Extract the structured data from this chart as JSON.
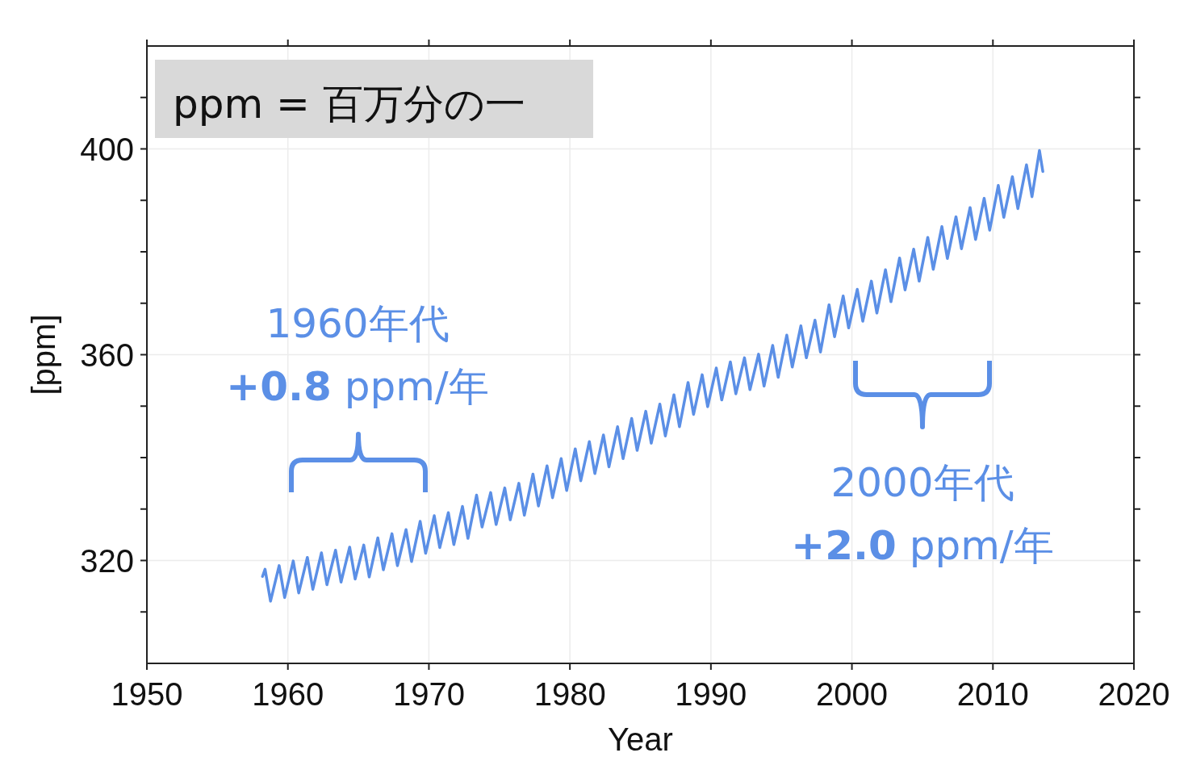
{
  "chart_data": {
    "type": "line",
    "xlabel": "Year",
    "ylabel": "[ppm]",
    "annotations": [
      "ppm = 百万分の一",
      "1960年代",
      "**+0.8** ppm/年",
      "2000年代",
      "**+2.0** ppm/年"
    ],
    "xlim": [
      1950,
      2020
    ],
    "xticks": [
      1950,
      1960,
      1970,
      1980,
      1990,
      2000,
      2010,
      2020
    ],
    "ylim": [
      300,
      420
    ],
    "yticks": [
      {
        "value": 310,
        "label": null
      },
      320,
      {
        "value": 330,
        "label": null
      },
      {
        "value": 340,
        "label": null
      },
      {
        "value": 350,
        "label": null
      },
      360,
      {
        "value": 370,
        "label": null
      },
      {
        "value": 380,
        "label": null
      },
      {
        "value": 390,
        "label": null
      },
      400,
      {
        "value": 410,
        "label": null
      }
    ],
    "grid": true,
    "marker": "none",
    "line_style": "solid",
    "series": [
      {
        "color": "#5b8fe6",
        "x": [
          1958.2,
          1958.38,
          1958.77,
          1959.38,
          1959.77,
          1960.38,
          1960.77,
          1961.38,
          1961.77,
          1962.38,
          1962.77,
          1963.38,
          1963.77,
          1964.38,
          1964.77,
          1965.38,
          1965.77,
          1966.38,
          1966.77,
          1967.38,
          1967.77,
          1968.38,
          1968.77,
          1969.38,
          1969.77,
          1970.38,
          1970.77,
          1971.38,
          1971.77,
          1972.38,
          1972.77,
          1973.38,
          1973.77,
          1974.38,
          1974.77,
          1975.38,
          1975.77,
          1976.38,
          1976.77,
          1977.38,
          1977.77,
          1978.38,
          1978.77,
          1979.38,
          1979.77,
          1980.38,
          1980.77,
          1981.38,
          1981.77,
          1982.38,
          1982.77,
          1983.38,
          1983.77,
          1984.38,
          1984.77,
          1985.38,
          1985.77,
          1986.38,
          1986.77,
          1987.38,
          1987.77,
          1988.38,
          1988.77,
          1989.38,
          1989.77,
          1990.38,
          1990.77,
          1991.38,
          1991.77,
          1992.38,
          1992.77,
          1993.38,
          1993.77,
          1994.38,
          1994.77,
          1995.38,
          1995.77,
          1996.38,
          1996.77,
          1997.38,
          1997.77,
          1998.38,
          1998.77,
          1999.38,
          1999.77,
          2000.38,
          2000.77,
          2001.38,
          2001.77,
          2002.38,
          2002.77,
          2003.38,
          2003.77,
          2004.38,
          2004.77,
          2005.38,
          2005.77,
          2006.38,
          2006.77,
          2007.38,
          2007.77,
          2008.38,
          2008.77,
          2009.38,
          2009.77,
          2010.38,
          2010.77,
          2011.38,
          2011.77,
          2012.38,
          2012.77,
          2013.3,
          2013.54
        ],
        "values": [
          316.9,
          318.3,
          312.1,
          319.0,
          312.8,
          319.9,
          313.7,
          320.6,
          314.4,
          321.5,
          315.3,
          322.0,
          315.8,
          322.6,
          316.4,
          323.0,
          316.8,
          324.4,
          318.2,
          325.2,
          319.0,
          326.0,
          319.8,
          327.6,
          321.4,
          328.7,
          322.5,
          329.3,
          323.1,
          330.5,
          324.3,
          332.7,
          326.5,
          333.2,
          327.0,
          334.1,
          327.9,
          335.0,
          328.8,
          336.8,
          330.6,
          338.4,
          332.2,
          339.8,
          333.6,
          341.7,
          335.5,
          343.1,
          336.9,
          344.4,
          338.2,
          346.0,
          339.8,
          347.6,
          341.4,
          349.0,
          342.8,
          350.4,
          344.2,
          352.2,
          346.0,
          354.6,
          348.4,
          356.1,
          349.9,
          357.4,
          351.2,
          358.6,
          352.4,
          359.4,
          353.2,
          360.1,
          353.9,
          361.8,
          355.6,
          363.8,
          357.6,
          365.6,
          359.4,
          366.7,
          360.5,
          369.7,
          363.5,
          371.4,
          365.2,
          372.7,
          366.5,
          374.3,
          368.1,
          376.5,
          370.3,
          378.8,
          372.6,
          380.5,
          374.3,
          382.8,
          376.6,
          384.9,
          378.7,
          386.8,
          380.6,
          388.6,
          382.4,
          390.4,
          384.2,
          392.9,
          386.7,
          394.6,
          388.4,
          396.9,
          390.7,
          399.7,
          395.6
        ]
      }
    ]
  }
}
